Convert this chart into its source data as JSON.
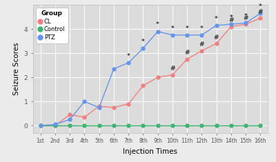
{
  "x_labels": [
    "1st",
    "2nd",
    "3rd",
    "4th",
    "5th",
    "6th",
    "7th",
    "8th",
    "9th",
    "10th",
    "11th",
    "12th",
    "13th",
    "14th",
    "15th",
    "16th"
  ],
  "CL": [
    0.0,
    0.0,
    0.45,
    0.35,
    0.8,
    0.75,
    0.9,
    1.65,
    2.0,
    2.1,
    2.75,
    3.1,
    3.4,
    4.1,
    4.2,
    4.45
  ],
  "Control": [
    0.0,
    0.0,
    0.0,
    0.0,
    0.0,
    0.0,
    0.0,
    0.0,
    0.0,
    0.0,
    0.0,
    0.0,
    0.0,
    0.0,
    0.0,
    0.0
  ],
  "PTZ": [
    0.0,
    0.05,
    0.25,
    1.0,
    0.75,
    2.35,
    2.6,
    3.2,
    3.9,
    3.75,
    3.75,
    3.75,
    4.15,
    4.2,
    4.25,
    4.65
  ],
  "CL_color": "#F08080",
  "Control_color": "#3CB371",
  "PTZ_color": "#6495ED",
  "bg_color": "#DCDCDC",
  "fig_bg_color": "#EBEBEB",
  "ylabel": "Seizure Scores",
  "xlabel": "Injection Times",
  "ylim": [
    -0.3,
    5.0
  ],
  "yticks": [
    0,
    1,
    2,
    3,
    4
  ],
  "legend_title": "Group",
  "star_idx_0based": [
    6,
    7,
    8,
    9,
    10,
    11,
    12,
    13,
    14,
    15
  ],
  "hash_idx_0based": [
    9,
    10,
    11,
    12,
    13,
    14,
    15
  ]
}
